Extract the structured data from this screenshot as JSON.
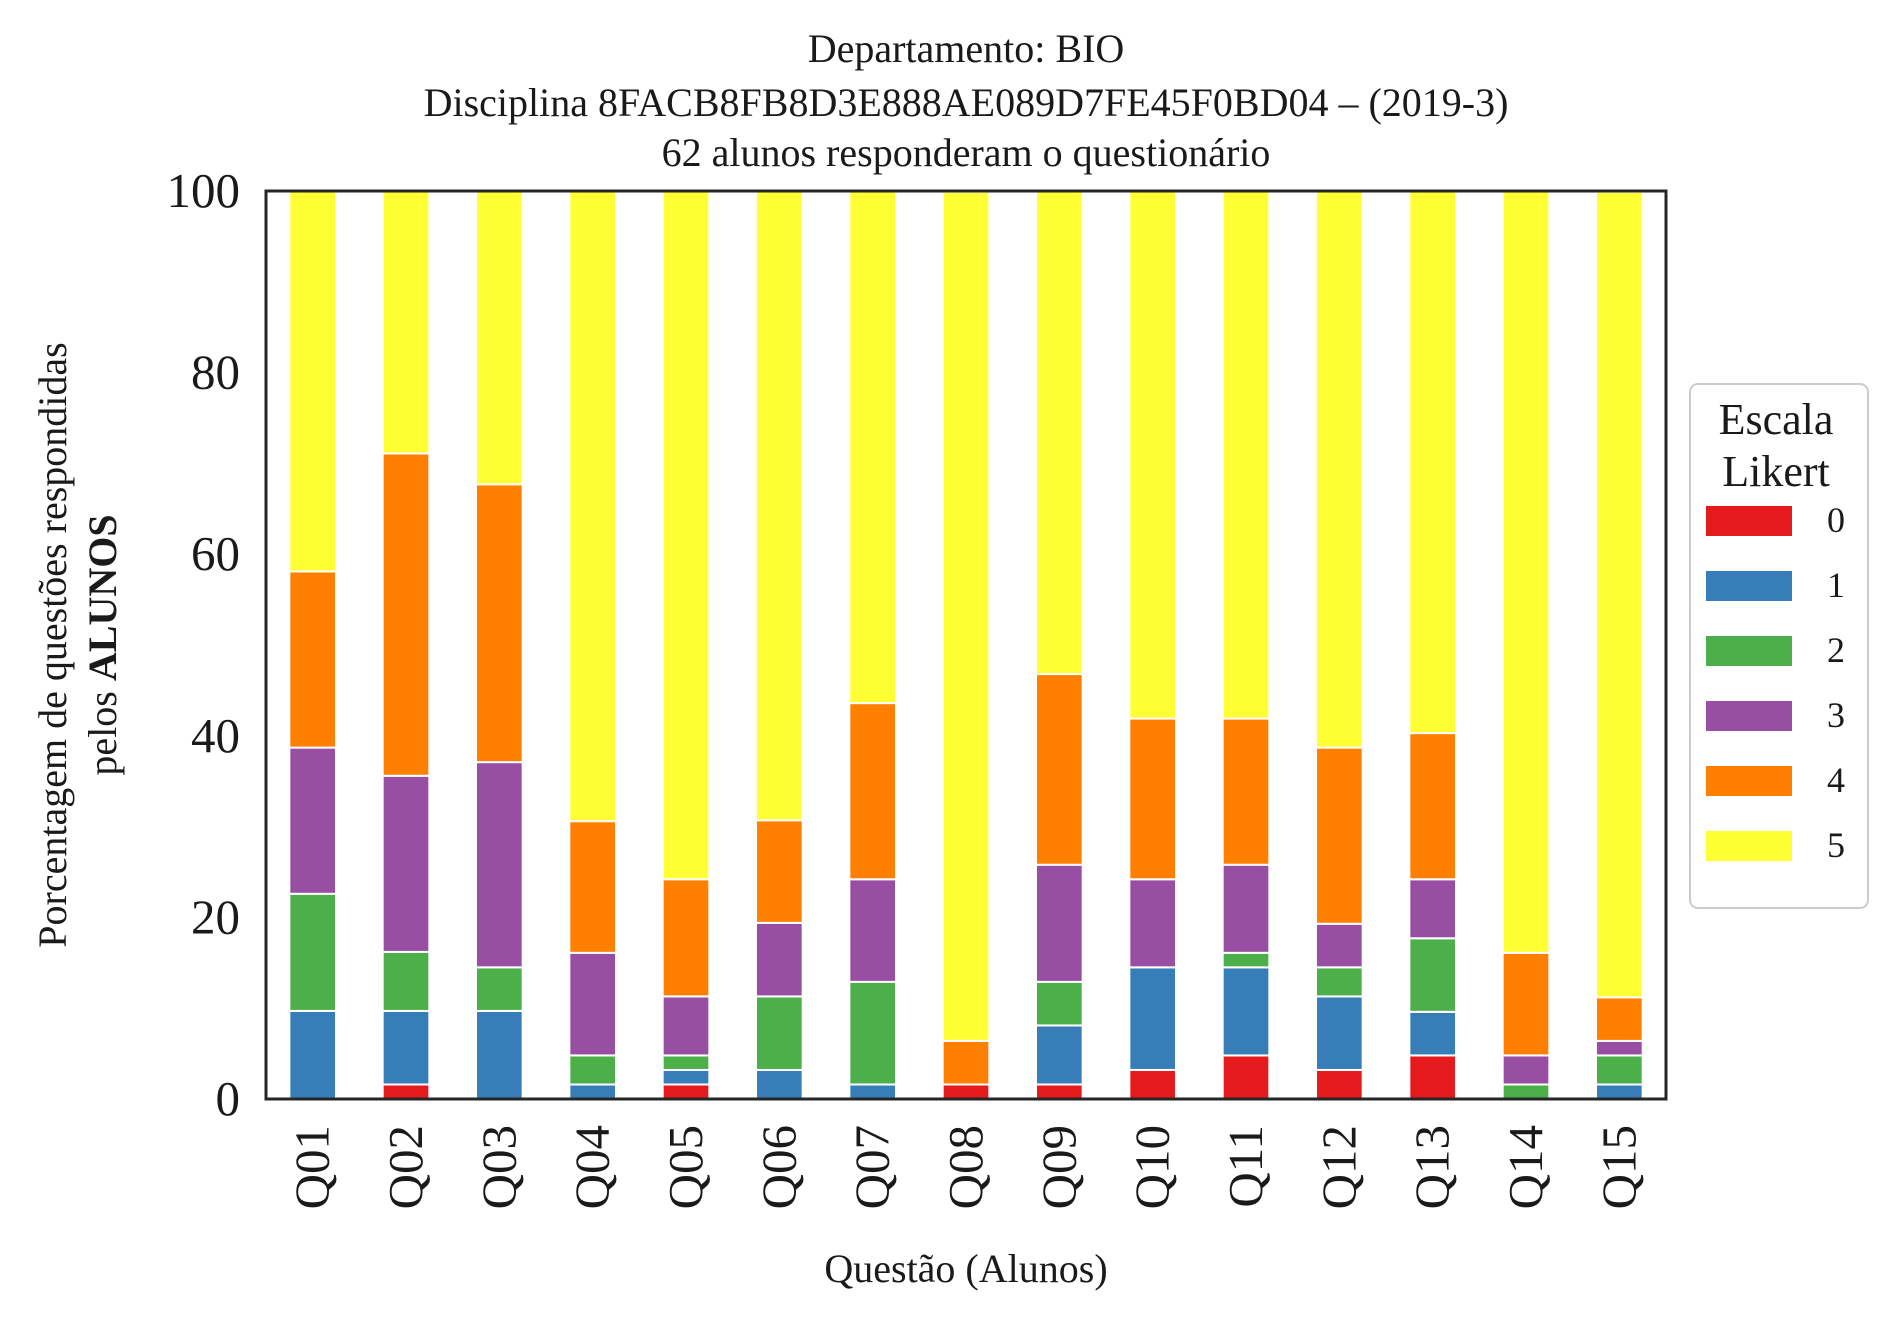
{
  "chart_data": {
    "type": "bar",
    "stacked": true,
    "title": [
      "Departamento: BIO",
      "Disciplina 8FACB8FB8D3E888AE089D7FE45F0BD04 – (2019-3)",
      "62 alunos responderam o questionário"
    ],
    "xlabel": "Questão (Alunos)",
    "ylabel_line1": "Porcentagem de questões respondidas",
    "ylabel_line2_prefix": "pelos ",
    "ylabel_line2_bold": "ALUNOS",
    "ylim": [
      0,
      100
    ],
    "yticks": [
      "0",
      "20",
      "40",
      "60",
      "80",
      "100"
    ],
    "grid": false,
    "legend_placement": "center-right outside",
    "legend_title": [
      "Escala",
      "Likert"
    ],
    "categories": [
      "Q01",
      "Q02",
      "Q03",
      "Q04",
      "Q05",
      "Q06",
      "Q07",
      "Q08",
      "Q09",
      "Q10",
      "Q11",
      "Q12",
      "Q13",
      "Q14",
      "Q15"
    ],
    "series": [
      {
        "name": "0",
        "color": "#e41a1c",
        "values": [
          0,
          1.6,
          0,
          0,
          1.6,
          0,
          0,
          1.6,
          1.6,
          3.2,
          4.8,
          3.2,
          4.8,
          0,
          0
        ]
      },
      {
        "name": "1",
        "color": "#377eb8",
        "values": [
          9.7,
          8.1,
          9.7,
          1.6,
          1.6,
          3.2,
          1.6,
          0,
          6.5,
          11.3,
          9.7,
          8.1,
          4.8,
          0,
          1.6
        ]
      },
      {
        "name": "2",
        "color": "#4daf4a",
        "values": [
          12.9,
          6.5,
          4.8,
          3.2,
          1.6,
          8.1,
          11.3,
          0,
          4.8,
          0,
          1.6,
          3.2,
          8.1,
          1.6,
          3.2
        ]
      },
      {
        "name": "3",
        "color": "#984ea3",
        "values": [
          16.1,
          19.4,
          22.6,
          11.3,
          6.5,
          8.1,
          11.3,
          0,
          12.9,
          9.7,
          9.7,
          4.8,
          6.5,
          3.2,
          1.6
        ]
      },
      {
        "name": "4",
        "color": "#ff7f00",
        "values": [
          19.4,
          35.5,
          30.6,
          14.5,
          12.9,
          11.3,
          19.4,
          4.8,
          21.0,
          17.7,
          16.1,
          19.4,
          16.1,
          11.3,
          4.8
        ]
      },
      {
        "name": "5",
        "color": "#ffff33",
        "values": [
          41.9,
          29.0,
          32.3,
          69.4,
          75.8,
          69.4,
          56.5,
          93.5,
          53.2,
          58.1,
          58.1,
          61.3,
          59.7,
          83.9,
          88.7
        ]
      }
    ]
  }
}
